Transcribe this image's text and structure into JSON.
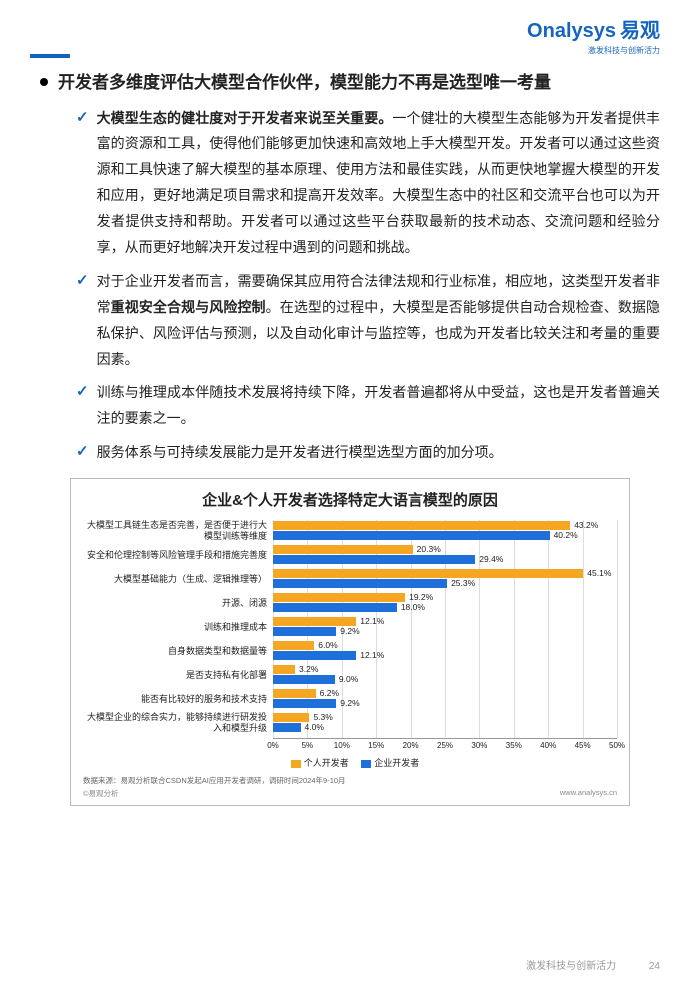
{
  "logo": {
    "brand": "Onalysys",
    "brand_cn": "易观",
    "tagline": "激发科技与创新活力"
  },
  "title": "开发者多维度评估大模型合作伙伴，模型能力不再是选型唯一考量",
  "paragraphs": [
    {
      "lead": "大模型生态的健壮度对于开发者来说至关重要。",
      "rest": "一个健壮的大模型生态能够为开发者提供丰富的资源和工具，使得他们能够更加快速和高效地上手大模型开发。开发者可以通过这些资源和工具快速了解大模型的基本原理、使用方法和最佳实践，从而更快地掌握大模型的开发和应用，更好地满足项目需求和提高开发效率。大模型生态中的社区和交流平台也可以为开发者提供支持和帮助。开发者可以通过这些平台获取最新的技术动态、交流问题和经验分享，从而更好地解决开发过程中遇到的问题和挑战。"
    },
    {
      "pre": "对于企业开发者而言，需要确保其应用符合法律法规和行业标准，相应地，这类型开发者非常",
      "bold": "重视安全合规与风险控制",
      "post": "。在选型的过程中，大模型是否能够提供自动合规检查、数据隐私保护、风险评估与预测，以及自动化审计与监控等，也成为开发者比较关注和考量的重要因素。"
    },
    {
      "text": "训练与推理成本伴随技术发展将持续下降，开发者普遍都将从中受益，这也是开发者普遍关注的要素之一。"
    },
    {
      "text": "服务体系与可持续发展能力是开发者进行模型选型方面的加分项。"
    }
  ],
  "chart": {
    "title": "企业&个人开发者选择特定大语言模型的原因",
    "max_pct": 50,
    "tick_step": 5,
    "colors": {
      "series1": "#f5a623",
      "series2": "#1e6fd9",
      "grid": "#dddddd",
      "axis": "#999999"
    },
    "legend": {
      "s1": "个人开发者",
      "s2": "企业开发者"
    },
    "categories": [
      {
        "label": "大模型工具链生态是否完善，是否便于进行大模型训练等维度",
        "v1": 43.2,
        "v2": 40.2
      },
      {
        "label": "安全和伦理控制等风险管理手段和措施完善度",
        "v1": 20.3,
        "v2": 29.4
      },
      {
        "label": "大模型基础能力（生成、逻辑推理等）",
        "v1": 45.1,
        "v2": 25.3
      },
      {
        "label": "开源、闭源",
        "v1": 19.2,
        "v2": 18.0
      },
      {
        "label": "训练和推理成本",
        "v1": 12.1,
        "v2": 9.2
      },
      {
        "label": "自身数据类型和数据量等",
        "v1": 6.0,
        "v2": 12.1
      },
      {
        "label": "是否支持私有化部署",
        "v1": 3.2,
        "v2": 9.0
      },
      {
        "label": "能否有比较好的服务和技术支持",
        "v1": 6.2,
        "v2": 9.2
      },
      {
        "label": "大模型企业的综合实力，能够持续进行研发投入和模型升级",
        "v1": 5.3,
        "v2": 4.0
      }
    ],
    "source": "数据来源：易观分析联合CSDN发起AI应用开发者调研，调研时间2024年9-10月",
    "copyright": "©易观分析",
    "url": "www.analysys.cn"
  },
  "footer": {
    "slogan": "激发科技与创新活力",
    "page": "24"
  }
}
